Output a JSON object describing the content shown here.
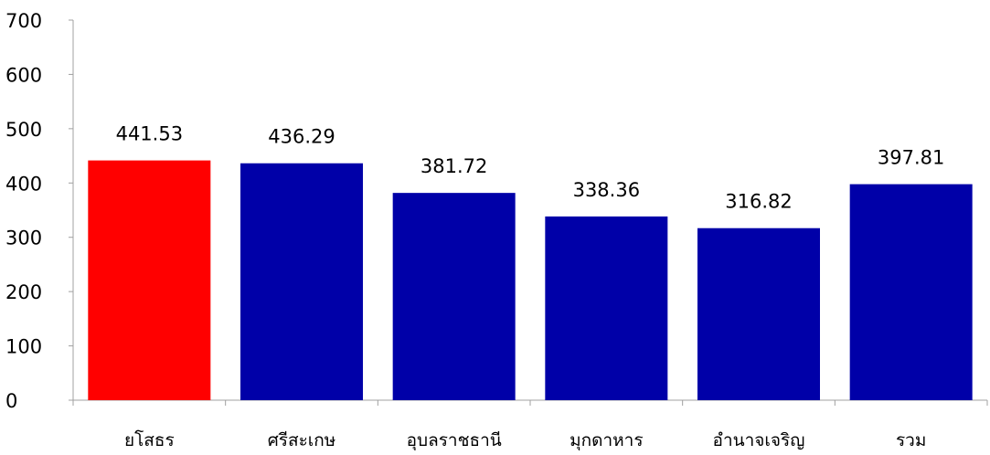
{
  "chart_data": {
    "type": "bar",
    "title": "",
    "xlabel": "",
    "ylabel": "",
    "ylim": [
      0,
      700
    ],
    "yticks": [
      0,
      100,
      200,
      300,
      400,
      500,
      600,
      700
    ],
    "grid": false,
    "legend": "none",
    "categories": [
      "ยโสธร",
      "ศรีสะเกษ",
      "อุบลราชธานี",
      "มุกดาหาร",
      "อำนาจเจริญ",
      "รวม"
    ],
    "values": [
      441.53,
      436.29,
      381.72,
      338.36,
      316.82,
      397.81
    ],
    "value_labels": [
      "441.53",
      "436.29",
      "381.72",
      "338.36",
      "316.82",
      "397.81"
    ],
    "bar_colors": [
      "#ff0000",
      "#0000a8",
      "#0000a8",
      "#0000a8",
      "#0000a8",
      "#0000a8"
    ]
  }
}
